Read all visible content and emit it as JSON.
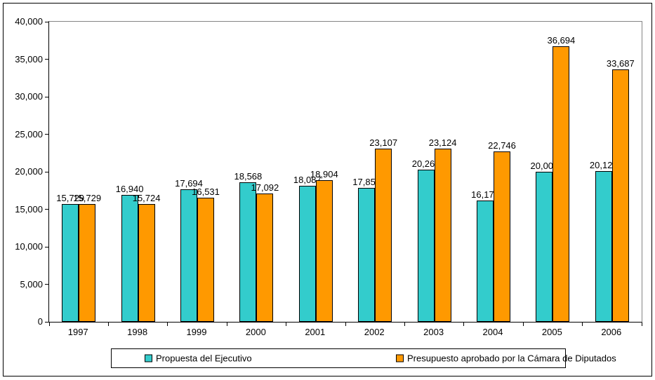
{
  "chart_data": {
    "type": "bar",
    "categories": [
      "1997",
      "1998",
      "1999",
      "2000",
      "2001",
      "2002",
      "2003",
      "2004",
      "2005",
      "2006"
    ],
    "series": [
      {
        "name": "Propuesta del Ejecutivo",
        "color": "#33CCCC",
        "values": [
          15729,
          16940,
          17694,
          18568,
          18087,
          17859,
          20269,
          16177,
          20003,
          20127
        ]
      },
      {
        "name": "Presupuesto aprobado por la Cámara de Diputados",
        "color": "#FF9900",
        "values": [
          15729,
          15724,
          16531,
          17092,
          18904,
          23107,
          23124,
          22746,
          36694,
          33687
        ]
      }
    ],
    "ylim": [
      0,
      40000
    ],
    "ytick_step": 5000,
    "grid": false,
    "data_labels": true,
    "legend_position": "bottom",
    "colors": {
      "series1": "#33CCCC",
      "series2": "#FF9900",
      "axis": "#000000",
      "plot_border": "#848484",
      "background": "#FFFFFF"
    }
  }
}
